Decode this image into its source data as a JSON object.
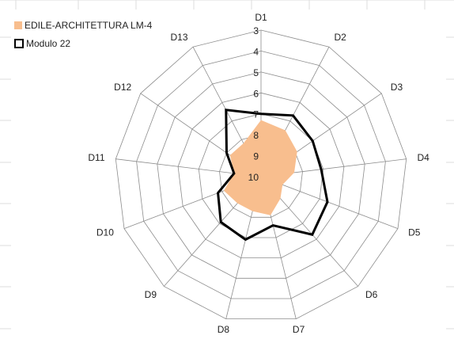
{
  "chart_data": {
    "type": "radar",
    "title": "",
    "categories": [
      "D1",
      "D2",
      "D3",
      "D4",
      "D5",
      "D6",
      "D7",
      "D8",
      "D9",
      "D10",
      "D11",
      "D12",
      "D13"
    ],
    "radial_ticks": [
      "3",
      "4",
      "5",
      "6",
      "7",
      "8",
      "9",
      "10"
    ],
    "axis": {
      "min": 3,
      "max": 10,
      "reversed": true
    },
    "grid": true,
    "legend_position": "top-left",
    "series": [
      {
        "name": "EDILE-ARCHITETTURA LM-4",
        "kind": "area",
        "color": "#F8BE8E",
        "values": [
          7.3,
          7.5,
          7.9,
          8.4,
          8.9,
          8.6,
          8.1,
          8.3,
          8.3,
          8.1,
          8.7,
          8.2,
          8.2
        ]
      },
      {
        "name": "Modulo 22",
        "kind": "line",
        "color": "#000000",
        "values": [
          7.0,
          6.7,
          7.0,
          7.1,
          6.6,
          6.3,
          7.6,
          6.9,
          7.1,
          7.8,
          8.7,
          8.0,
          6.4
        ]
      }
    ]
  }
}
